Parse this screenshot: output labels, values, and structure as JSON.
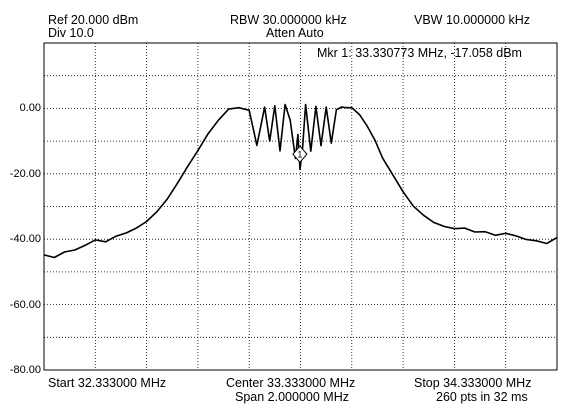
{
  "header": {
    "ref": "Ref 20.000 dBm",
    "div": "Div 10.0",
    "rbw": "RBW 30.000000 kHz",
    "atten": "Atten Auto",
    "vbw": "VBW 10.000000 kHz",
    "marker_readout": "Mkr 1: 33.330773 MHz, -17.058 dBm"
  },
  "marker": {
    "label": "1",
    "freq_mhz": 33.330773,
    "level_dbm": -17.058
  },
  "footer": {
    "start": "Start 32.333000 MHz",
    "center": "Center 33.333000 MHz",
    "span": "Span 2.000000 MHz",
    "stop": "Stop 34.333000 MHz",
    "sweep": "260 pts in 32 ms"
  },
  "colors": {
    "trace": "#000000",
    "grid": "#000000",
    "frame": "#000000",
    "background": "#ffffff"
  },
  "chart_data": {
    "type": "line",
    "xlabel": "",
    "ylabel": "",
    "ylim": [
      -80,
      20
    ],
    "xlim": [
      32.333,
      34.333
    ],
    "y_tick_values": [
      0,
      -20,
      -40,
      -60,
      -80
    ],
    "y_tick_labels": [
      "0.00",
      "-20.00",
      "-40.00",
      "-60.00",
      "-80.00"
    ],
    "grid": "dotted",
    "x": [
      32.333,
      32.373,
      32.413,
      32.453,
      32.493,
      32.533,
      32.573,
      32.613,
      32.653,
      32.693,
      32.733,
      32.773,
      32.813,
      32.853,
      32.893,
      32.933,
      32.973,
      33.013,
      33.053,
      33.093,
      33.133,
      33.163,
      33.193,
      33.213,
      33.233,
      33.253,
      33.273,
      33.293,
      33.313,
      33.323,
      33.331,
      33.341,
      33.353,
      33.373,
      33.393,
      33.413,
      33.433,
      33.453,
      33.473,
      33.493,
      33.513,
      33.533,
      33.563,
      33.593,
      33.623,
      33.653,
      33.693,
      33.733,
      33.773,
      33.813,
      33.853,
      33.893,
      33.933,
      33.973,
      34.013,
      34.053,
      34.093,
      34.133,
      34.173,
      34.213,
      34.253,
      34.293,
      34.333
    ],
    "series": [
      {
        "values": [
          -44.8,
          -45.6,
          -43.9,
          -43.3,
          -41.9,
          -40.2,
          -40.8,
          -39.1,
          -38.1,
          -36.6,
          -34.6,
          -31.6,
          -27.8,
          -22.9,
          -17.8,
          -12.9,
          -7.7,
          -3.6,
          -0.2,
          0.2,
          -0.6,
          -11.3,
          0.4,
          -10.0,
          0.8,
          -13.0,
          1.2,
          -3.6,
          -15.3,
          -8.0,
          -18.7,
          -12.0,
          1.2,
          -13.1,
          0.6,
          -11.4,
          0.4,
          -10.6,
          -0.4,
          0.4,
          0.2,
          0.2,
          -1.9,
          -5.4,
          -9.7,
          -15.2,
          -20.3,
          -25.5,
          -29.9,
          -32.7,
          -34.9,
          -36.1,
          -36.8,
          -36.6,
          -37.8,
          -37.7,
          -38.8,
          -38.2,
          -39.0,
          -40.1,
          -40.5,
          -41.3,
          -39.5
        ]
      }
    ]
  }
}
